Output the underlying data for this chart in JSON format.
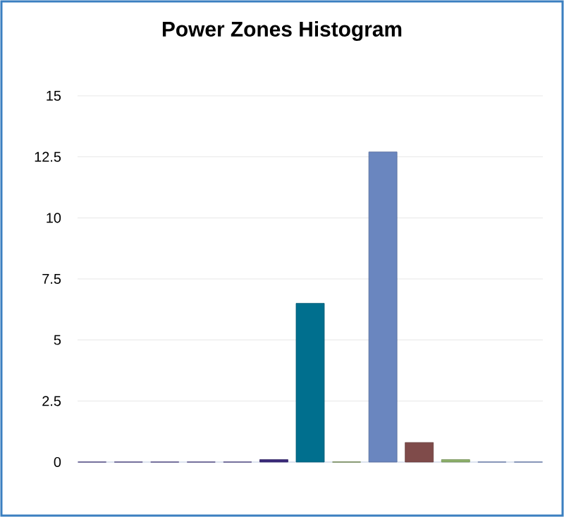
{
  "chart_data": {
    "type": "bar",
    "title": "Power Zones Histogram",
    "categories": [
      null,
      null,
      null,
      null,
      null,
      null,
      null,
      null,
      null,
      null,
      null,
      null,
      null
    ],
    "values": [
      0,
      0,
      0,
      0,
      0,
      0.1,
      6.5,
      0,
      12.7,
      0.8,
      0.1,
      0,
      0
    ],
    "colors": [
      "#4a3a8a",
      "#4a3a8a",
      "#4a3a8a",
      "#4a3a8a",
      "#4a3a8a",
      "#3b2a7a",
      "#006f8e",
      "#6f8f3a",
      "#6a86bf",
      "#7f4b4a",
      "#8db06a",
      "#6a86bf",
      "#6a86bf"
    ],
    "ylim": [
      0,
      15
    ],
    "yticks": [
      0,
      2.5,
      5,
      7.5,
      10,
      12.5,
      15
    ],
    "grid": "y"
  }
}
